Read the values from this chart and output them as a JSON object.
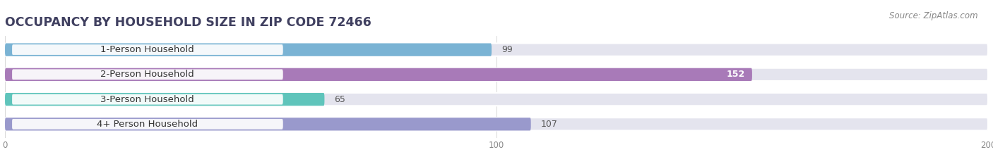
{
  "title": "OCCUPANCY BY HOUSEHOLD SIZE IN ZIP CODE 72466",
  "source_text": "Source: ZipAtlas.com",
  "categories": [
    "1-Person Household",
    "2-Person Household",
    "3-Person Household",
    "4+ Person Household"
  ],
  "values": [
    99,
    152,
    65,
    107
  ],
  "bar_colors": [
    "#7ab3d4",
    "#a87ab8",
    "#5fc4bb",
    "#9999cc"
  ],
  "bar_bg_color": "#e4e4ee",
  "value_label_colors": [
    "#666666",
    "#ffffff",
    "#666666",
    "#666666"
  ],
  "xlim": [
    -2,
    200
  ],
  "xticks": [
    0,
    100,
    200
  ],
  "title_fontsize": 12.5,
  "label_fontsize": 9.5,
  "value_fontsize": 9,
  "source_fontsize": 8.5,
  "bg_color": "#ffffff",
  "bar_height": 0.52,
  "bar_gap": 1.0
}
